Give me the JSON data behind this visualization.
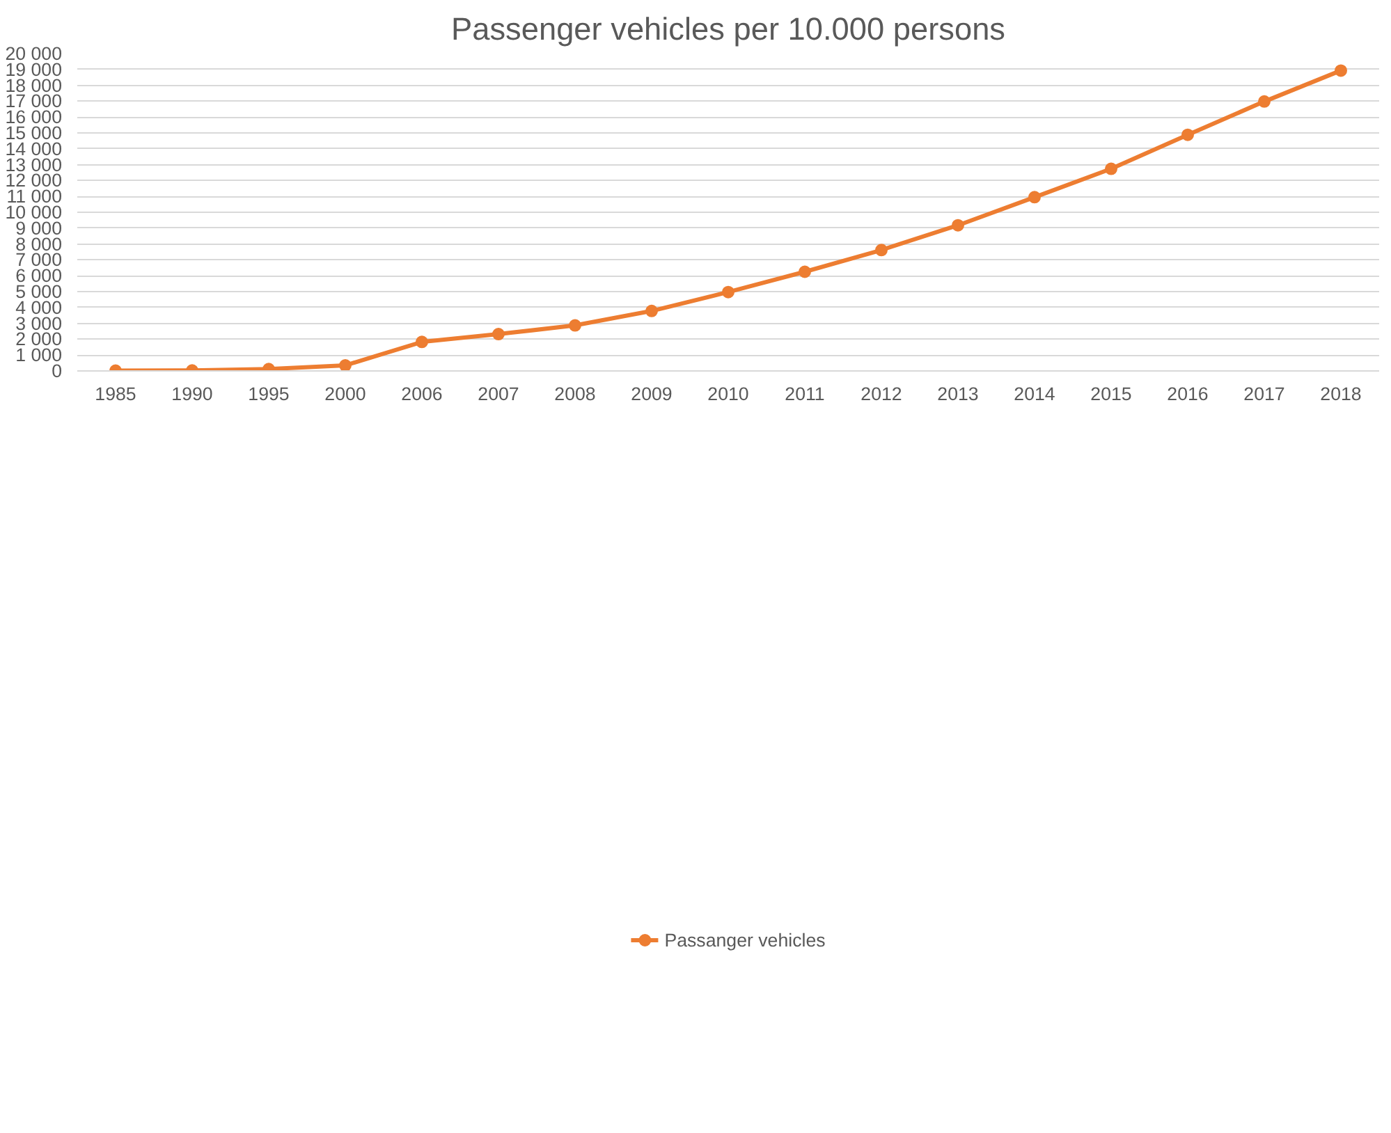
{
  "chart_data": {
    "type": "line",
    "title": "Passenger vehicles per 10.000 persons",
    "categories": [
      "1985",
      "1990",
      "1995",
      "2000",
      "2006",
      "2007",
      "2008",
      "2009",
      "2010",
      "2011",
      "2012",
      "2013",
      "2014",
      "2015",
      "2016",
      "2017",
      "2018"
    ],
    "series": [
      {
        "name": "Passanger vehicles",
        "color": "#ed7d31",
        "values": [
          20,
          30,
          120,
          350,
          1830,
          2320,
          2870,
          3780,
          4970,
          6250,
          7620,
          9180,
          10950,
          12740,
          14880,
          16980,
          18930
        ]
      }
    ],
    "ylim": [
      0,
      20000
    ],
    "yticks": [
      0,
      {
        "value": 1000,
        "label": "1 000"
      },
      {
        "value": 2000,
        "label": "2 000"
      },
      {
        "value": 3000,
        "label": "3 000"
      },
      {
        "value": 4000,
        "label": "4 000"
      },
      {
        "value": 5000,
        "label": "5 000"
      },
      {
        "value": 6000,
        "label": "6 000"
      },
      {
        "value": 7000,
        "label": "7 000"
      },
      {
        "value": 8000,
        "label": "8 000"
      },
      {
        "value": 9000,
        "label": "9 000"
      },
      {
        "value": 10000,
        "label": "10 000"
      },
      {
        "value": 11000,
        "label": "11 000"
      },
      {
        "value": 12000,
        "label": "12 000"
      },
      {
        "value": 13000,
        "label": "13 000"
      },
      {
        "value": 14000,
        "label": "14 000"
      },
      {
        "value": 15000,
        "label": "15 000"
      },
      {
        "value": 16000,
        "label": "16 000"
      },
      {
        "value": 17000,
        "label": "17 000"
      },
      {
        "value": 18000,
        "label": "18 000"
      },
      {
        "value": 19000,
        "label": "19 000"
      },
      {
        "value": 20000,
        "label": "20 000"
      }
    ],
    "grid": "y",
    "legend": "bottom",
    "marker": "circle",
    "line_style": "solid"
  }
}
